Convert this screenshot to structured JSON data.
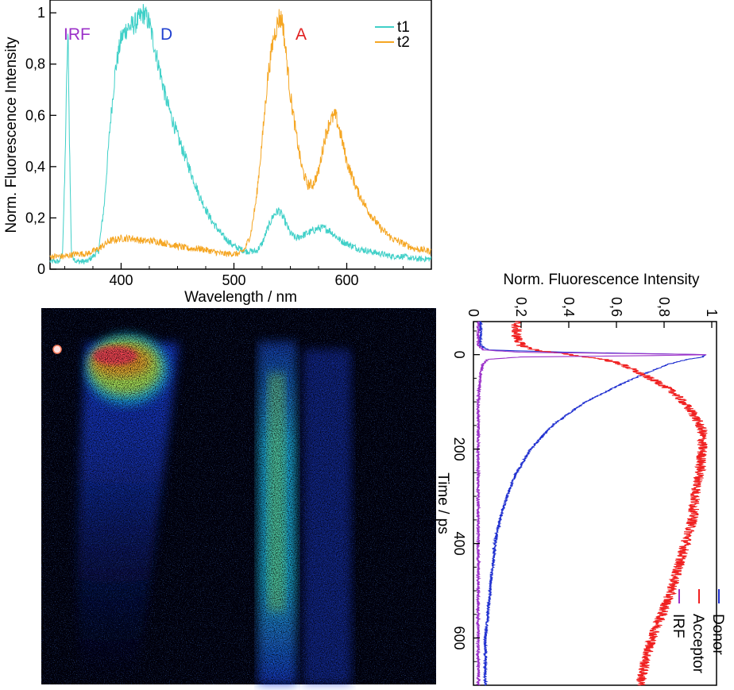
{
  "chart_data": [
    {
      "type": "line",
      "xlabel": "Wavelength / nm",
      "ylabel": "Norm. Fluorescence Intensity",
      "xlim": [
        337,
        675
      ],
      "ylim": [
        0,
        1.05
      ],
      "x_ticks": [
        400,
        500,
        600
      ],
      "y_ticks": [
        0,
        0.2,
        0.4,
        0.6,
        0.8,
        1
      ],
      "y_tick_labels": [
        "0",
        "0,2",
        "0,4",
        "0,6",
        "0,8",
        "1"
      ],
      "grid": false,
      "legend_position": "top-right",
      "annotations": [
        {
          "text": "IRF",
          "color": "#9b30c8"
        },
        {
          "text": "D",
          "color": "#2040d0"
        },
        {
          "text": "A",
          "color": "#e02020"
        }
      ],
      "series": [
        {
          "name": "t1",
          "color": "#40d0c8",
          "x": [
            337,
            345,
            348,
            350,
            352,
            353,
            354,
            356,
            360,
            370,
            380,
            385,
            390,
            395,
            400,
            405,
            410,
            415,
            420,
            425,
            430,
            435,
            440,
            450,
            460,
            470,
            480,
            490,
            500,
            510,
            520,
            525,
            530,
            535,
            540,
            545,
            550,
            555,
            560,
            565,
            570,
            575,
            580,
            585,
            590,
            595,
            600,
            610,
            620,
            630,
            640,
            650,
            660,
            675
          ],
          "y": [
            0.03,
            0.03,
            0.06,
            0.35,
            0.8,
            0.92,
            0.55,
            0.06,
            0.03,
            0.03,
            0.07,
            0.25,
            0.55,
            0.78,
            0.9,
            0.94,
            0.95,
            0.97,
            1.0,
            0.96,
            0.86,
            0.76,
            0.66,
            0.52,
            0.4,
            0.28,
            0.19,
            0.13,
            0.09,
            0.07,
            0.07,
            0.1,
            0.16,
            0.21,
            0.23,
            0.19,
            0.14,
            0.12,
            0.13,
            0.14,
            0.15,
            0.16,
            0.16,
            0.15,
            0.13,
            0.11,
            0.1,
            0.08,
            0.07,
            0.06,
            0.05,
            0.05,
            0.04,
            0.04
          ]
        },
        {
          "name": "t2",
          "color": "#f5a623",
          "x": [
            337,
            350,
            360,
            370,
            380,
            390,
            400,
            410,
            420,
            430,
            440,
            450,
            460,
            470,
            480,
            490,
            500,
            505,
            510,
            515,
            520,
            525,
            530,
            535,
            540,
            543,
            546,
            550,
            555,
            560,
            565,
            570,
            575,
            580,
            585,
            590,
            595,
            600,
            610,
            620,
            630,
            640,
            650,
            660,
            675
          ],
          "y": [
            0.05,
            0.05,
            0.06,
            0.06,
            0.08,
            0.11,
            0.12,
            0.12,
            0.11,
            0.11,
            0.1,
            0.09,
            0.08,
            0.08,
            0.07,
            0.06,
            0.06,
            0.06,
            0.08,
            0.14,
            0.28,
            0.5,
            0.75,
            0.9,
            0.98,
            0.97,
            0.85,
            0.68,
            0.53,
            0.4,
            0.33,
            0.33,
            0.38,
            0.5,
            0.58,
            0.6,
            0.52,
            0.42,
            0.3,
            0.22,
            0.16,
            0.12,
            0.1,
            0.08,
            0.07
          ]
        }
      ]
    },
    {
      "type": "heatmap",
      "description_axes": "wavelength (horizontal) vs time (vertical), streak camera image",
      "colormap": [
        "#000000",
        "#0a1a8c",
        "#1a40e0",
        "#20c8e8",
        "#a0f060",
        "#ffe030",
        "#ff8020",
        "#ff3050"
      ]
    },
    {
      "type": "line",
      "orientation": "rotated 90 degrees clockwise",
      "xlabel": "Time / ps",
      "ylabel": "Norm. Fluorescence Intensity",
      "xlim": [
        -70,
        700
      ],
      "ylim": [
        0,
        1.02
      ],
      "x_ticks": [
        0,
        200,
        400,
        600
      ],
      "y_ticks": [
        0,
        0.2,
        0.4,
        0.6,
        0.8,
        1
      ],
      "y_tick_labels": [
        "0",
        "0,2",
        "0,4",
        "0,6",
        "0,8",
        "1"
      ],
      "grid": false,
      "legend_position": "bottom-right",
      "series": [
        {
          "name": "Donor",
          "color": "#2030d0",
          "x": [
            -70,
            -20,
            -10,
            -5,
            0,
            5,
            10,
            20,
            40,
            60,
            80,
            100,
            150,
            200,
            250,
            300,
            350,
            400,
            450,
            500,
            550,
            600,
            650,
            700
          ],
          "y": [
            0.03,
            0.03,
            0.06,
            0.4,
            0.97,
            0.96,
            0.9,
            0.82,
            0.72,
            0.63,
            0.55,
            0.47,
            0.33,
            0.24,
            0.18,
            0.14,
            0.11,
            0.09,
            0.08,
            0.07,
            0.06,
            0.05,
            0.05,
            0.05
          ]
        },
        {
          "name": "Acceptor",
          "color": "#f02020",
          "x": [
            -70,
            -40,
            -20,
            -10,
            0,
            10,
            20,
            40,
            60,
            80,
            100,
            130,
            160,
            200,
            250,
            300,
            350,
            400,
            450,
            500,
            550,
            600,
            650,
            700
          ],
          "y": [
            0.18,
            0.18,
            0.2,
            0.26,
            0.4,
            0.55,
            0.62,
            0.7,
            0.78,
            0.84,
            0.88,
            0.93,
            0.96,
            0.96,
            0.95,
            0.93,
            0.92,
            0.89,
            0.86,
            0.83,
            0.79,
            0.75,
            0.72,
            0.7
          ]
        },
        {
          "name": "IRF",
          "color": "#9b30c8",
          "x": [
            -70,
            -20,
            -10,
            -5,
            -2,
            0,
            2,
            5,
            10,
            20,
            40,
            100,
            200,
            400,
            600,
            700
          ],
          "y": [
            0.02,
            0.02,
            0.04,
            0.2,
            0.7,
            1.0,
            0.75,
            0.2,
            0.06,
            0.04,
            0.03,
            0.02,
            0.02,
            0.02,
            0.02,
            0.02
          ]
        }
      ]
    }
  ]
}
